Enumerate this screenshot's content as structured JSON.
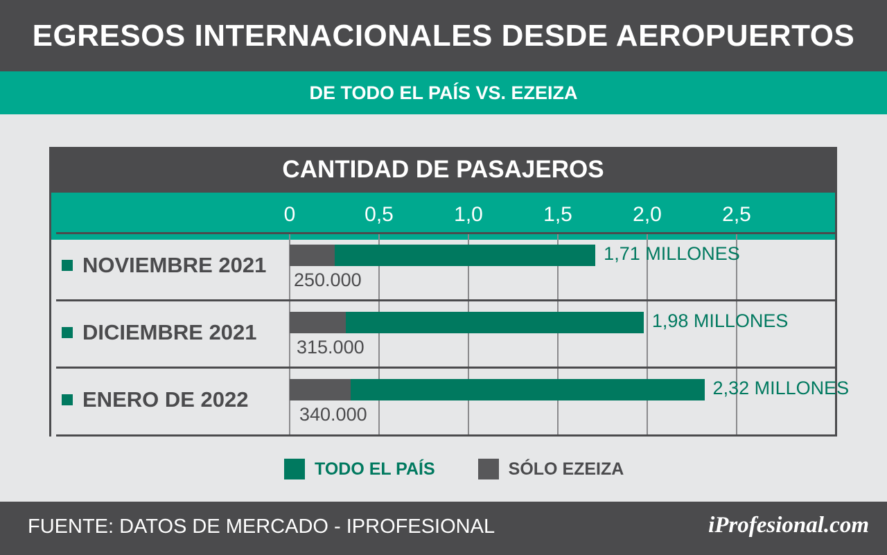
{
  "header": {
    "title": "EGRESOS INTERNACIONALES DESDE AEROPUERTOS",
    "subtitle": "DE TODO EL PAÍS VS. EZEIZA"
  },
  "footer": {
    "source": "FUENTE: DATOS DE MERCADO - IPROFESIONAL",
    "brand": "iProfesional.com"
  },
  "colors": {
    "todo_el_pais": "#00795f",
    "solo_ezeiza": "#58585a",
    "accent": "#00a98f",
    "dark": "#4b4b4d"
  },
  "chart_data": {
    "type": "bar",
    "orientation": "horizontal",
    "title": "CANTIDAD DE PASAJEROS",
    "categories": [
      "NOVIEMBRE 2021",
      "DICIEMBRE 2021",
      "ENERO DE 2022"
    ],
    "series": [
      {
        "name": "TODO EL PAÍS",
        "values": [
          1.71,
          1.98,
          2.32
        ],
        "labels": [
          "1,71 MILLONES",
          "1,98 MILLONES",
          "2,32 MILLONES"
        ]
      },
      {
        "name": "SÓLO EZEIZA",
        "values": [
          0.25,
          0.315,
          0.34
        ],
        "labels": [
          "250.000",
          "315.000",
          "340.000"
        ]
      }
    ],
    "xticks": [
      "0",
      "0,5",
      "1,0",
      "1,5",
      "2,0",
      "2,5"
    ],
    "xlim": [
      0,
      3
    ],
    "grid": true,
    "legend": "bottom"
  }
}
